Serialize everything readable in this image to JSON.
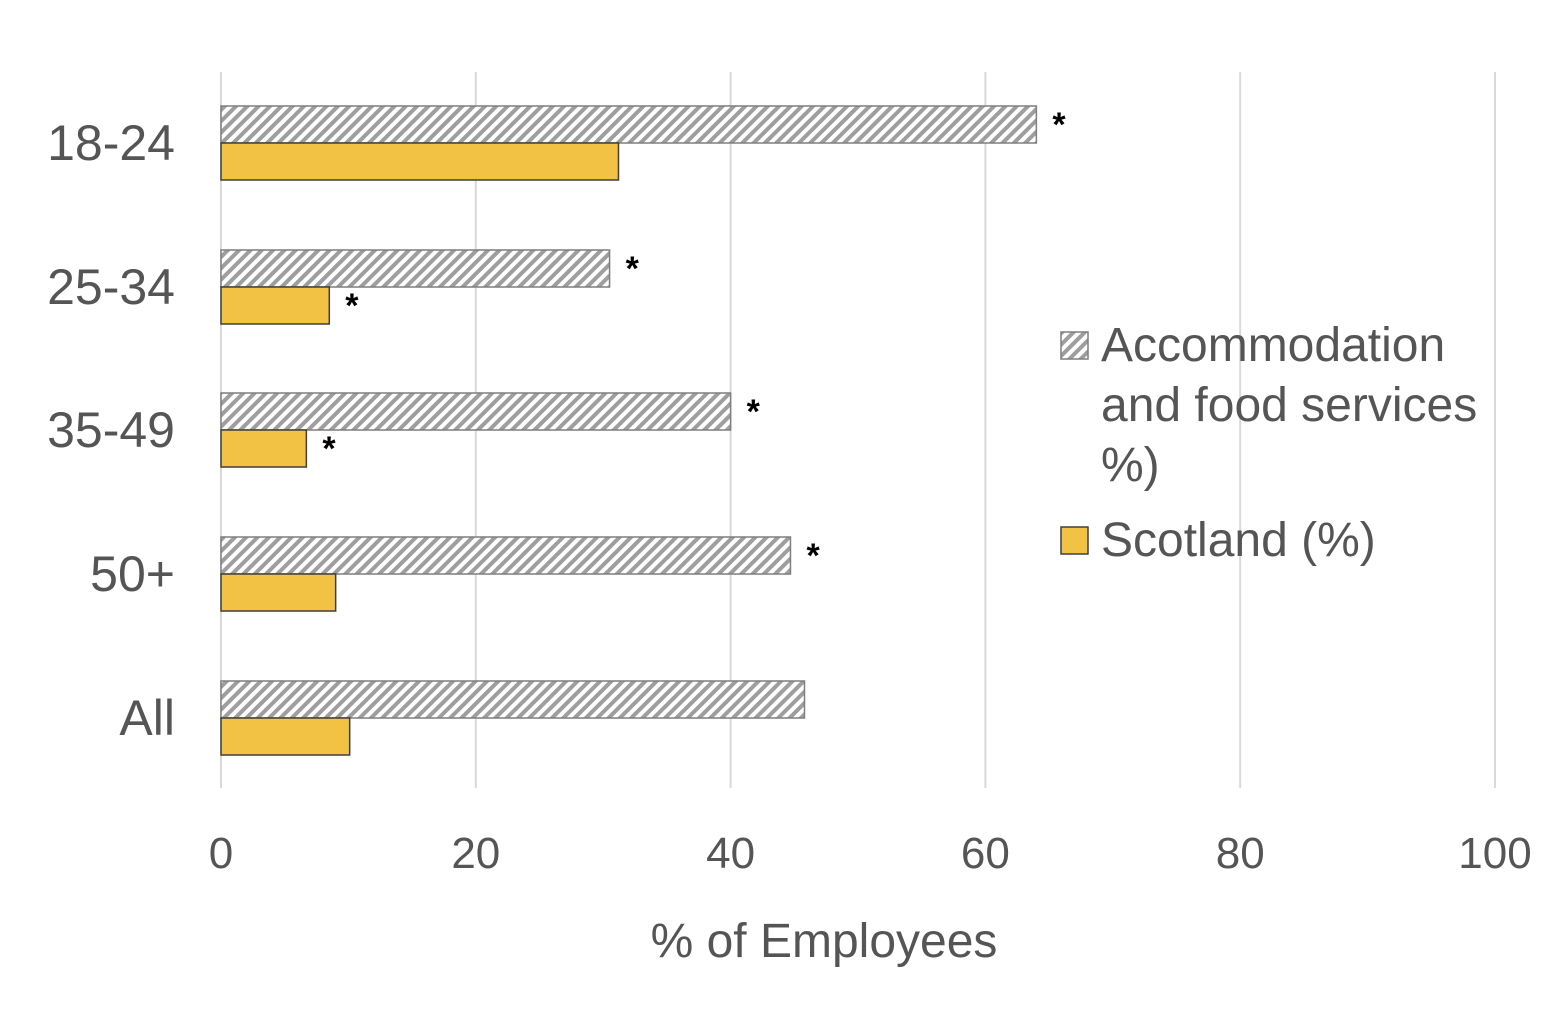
{
  "chart_data": {
    "type": "bar",
    "orientation": "horizontal",
    "categories": [
      "18-24",
      "25-34",
      "35-49",
      "50+",
      "All"
    ],
    "series": [
      {
        "name": "Accommodation and food services (%)",
        "values": [
          64,
          30.5,
          40,
          44.7,
          45.8
        ],
        "significance": [
          "*",
          "*",
          "*",
          "*",
          ""
        ],
        "color": "#d9d9d9",
        "pattern": "diagonal-hatch"
      },
      {
        "name": "Scotland (%)",
        "values": [
          31.2,
          8.5,
          6.7,
          9,
          10.1
        ],
        "significance": [
          "",
          "*",
          "*",
          "",
          ""
        ],
        "color": "#f2c244",
        "pattern": "solid"
      }
    ],
    "xlabel": "% of Employees",
    "ylabel": "",
    "xlim": [
      0,
      100
    ],
    "xticks": [
      "0",
      "20",
      "40",
      "60",
      "80",
      "100"
    ],
    "grid": "vertical",
    "legend_position": "right"
  }
}
